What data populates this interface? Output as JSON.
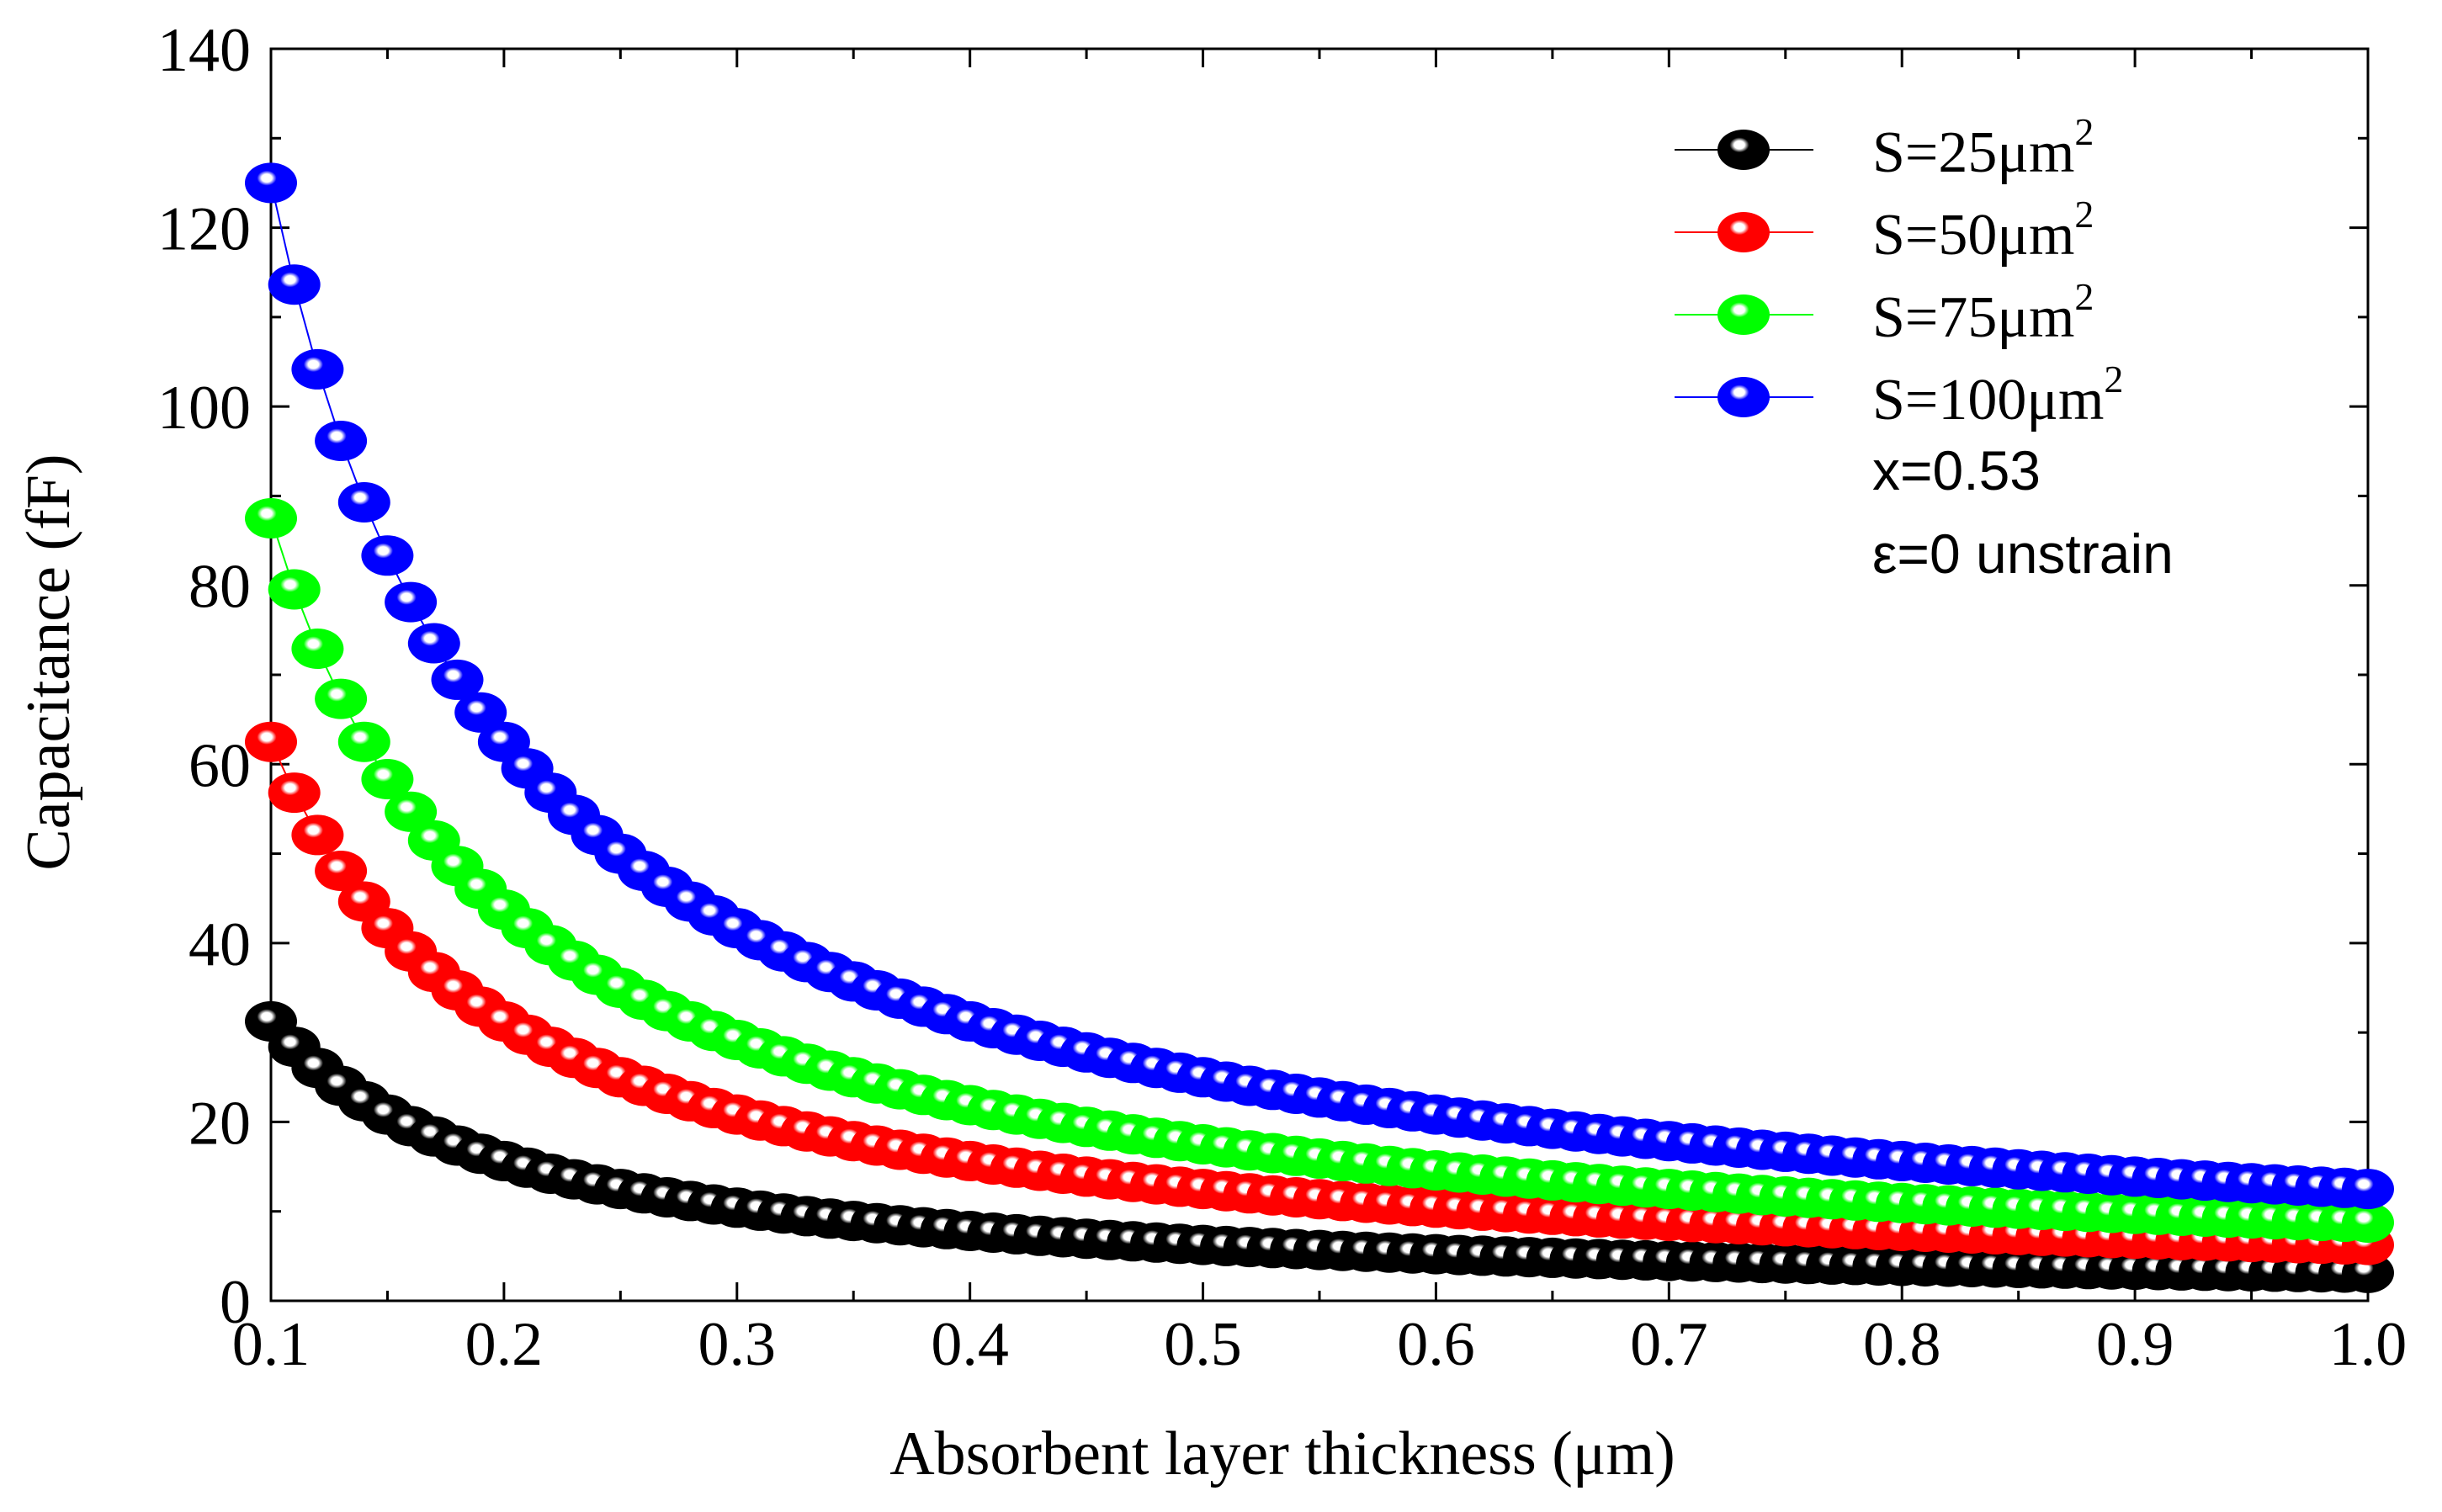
{
  "chart_data": {
    "type": "line",
    "title": "",
    "xlabel": "Absorbent layer thickness (μm)",
    "ylabel": "Capacitance (fF)",
    "xlim": [
      0.1,
      1.0
    ],
    "ylim": [
      0,
      140
    ],
    "x_ticks": [
      0.1,
      0.2,
      0.3,
      0.4,
      0.5,
      0.6,
      0.7,
      0.8,
      0.9,
      1.0
    ],
    "x_tick_labels": [
      "0.1",
      "0.2",
      "0.3",
      "0.4",
      "0.5",
      "0.6",
      "0.7",
      "0.8",
      "0.9",
      "1.0"
    ],
    "y_ticks": [
      0,
      20,
      40,
      60,
      80,
      100,
      120,
      140
    ],
    "y_tick_labels": [
      "0",
      "20",
      "40",
      "60",
      "80",
      "100",
      "120",
      "140"
    ],
    "x_step": 0.01,
    "model": "C = k / d",
    "legend_position": "top-right",
    "grid": false,
    "series": [
      {
        "name": "S=25μm",
        "sup": "2",
        "color": "#000000",
        "k": 3.125,
        "y_at_0_1": 31.25,
        "y_at_1_0": 3.13
      },
      {
        "name": "S=50μm",
        "sup": "2",
        "color": "#ff0000",
        "k": 6.25,
        "y_at_0_1": 62.5,
        "y_at_1_0": 6.25
      },
      {
        "name": "S=75μm",
        "sup": "2",
        "color": "#00ff00",
        "k": 8.75,
        "y_at_0_1": 87.5,
        "y_at_1_0": 8.75
      },
      {
        "name": "S=100μm",
        "sup": "2",
        "color": "#0000ff",
        "k": 12.5,
        "y_at_0_1": 125.0,
        "y_at_1_0": 12.5
      }
    ],
    "annotations": [
      "x=0.53",
      "ε=0  unstrain"
    ]
  }
}
